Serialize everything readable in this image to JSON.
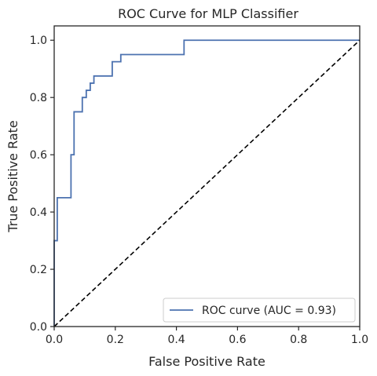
{
  "chart_data": {
    "type": "line",
    "title": "ROC Curve for MLP Classifier",
    "xlabel": "False Positive Rate",
    "ylabel": "True Positive Rate",
    "xlim": [
      0.0,
      1.0
    ],
    "ylim": [
      0.0,
      1.05
    ],
    "xticks": [
      "0.0",
      "0.2",
      "0.4",
      "0.6",
      "0.8",
      "1.0"
    ],
    "yticks": [
      "0.0",
      "0.2",
      "0.4",
      "0.6",
      "0.8",
      "1.0"
    ],
    "xtick_values": [
      0.0,
      0.2,
      0.4,
      0.6,
      0.8,
      1.0
    ],
    "ytick_values": [
      0.0,
      0.2,
      0.4,
      0.6,
      0.8,
      1.0
    ],
    "grid": false,
    "legend_position": "lower-right",
    "series": [
      {
        "name": "ROC curve (AUC = 0.93)",
        "style": "step",
        "color": "#4c72b0",
        "x": [
          0.0,
          0.0,
          0.01,
          0.01,
          0.055,
          0.055,
          0.065,
          0.065,
          0.092,
          0.092,
          0.105,
          0.105,
          0.118,
          0.118,
          0.13,
          0.13,
          0.19,
          0.19,
          0.2,
          0.2,
          0.218,
          0.218,
          0.425,
          0.425,
          1.0
        ],
        "y": [
          0.0,
          0.3,
          0.3,
          0.45,
          0.45,
          0.6,
          0.6,
          0.75,
          0.75,
          0.8,
          0.8,
          0.825,
          0.825,
          0.85,
          0.85,
          0.875,
          0.875,
          0.925,
          0.925,
          0.925,
          0.925,
          0.95,
          0.95,
          1.0,
          1.0
        ]
      },
      {
        "name": "",
        "style": "dashed",
        "color": "#000000",
        "x": [
          0.0,
          1.0
        ],
        "y": [
          0.0,
          1.0
        ]
      }
    ]
  }
}
